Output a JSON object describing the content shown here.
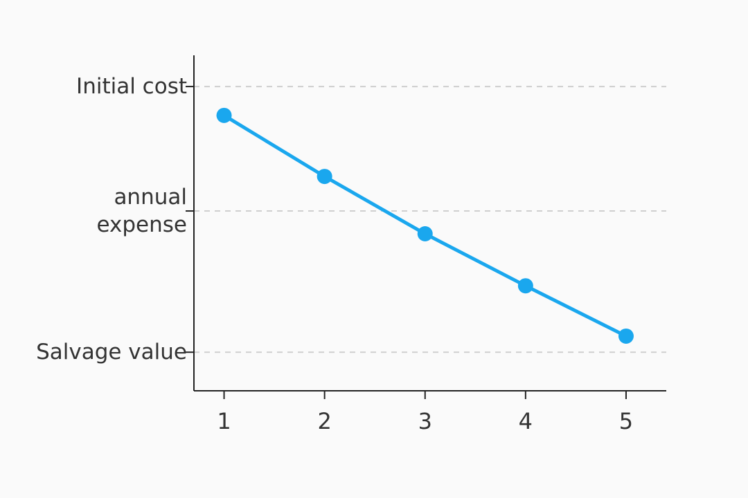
{
  "chart_data": {
    "type": "line",
    "x": [
      1,
      2,
      3,
      4,
      5
    ],
    "values": [
      82.1,
      63.9,
      46.8,
      31.3,
      16.3
    ],
    "color": "#1aa7ee",
    "xlim": [
      0.7,
      5.4
    ],
    "xticks": [
      1,
      2,
      3,
      4,
      5
    ],
    "ylim": [
      0,
      100
    ],
    "yticks": [
      {
        "value": 11.5,
        "label": "Salvage value"
      },
      {
        "value": 53.6,
        "label": "annual expense"
      },
      {
        "value": 90.7,
        "label": "Initial cost"
      }
    ],
    "grid": true
  }
}
